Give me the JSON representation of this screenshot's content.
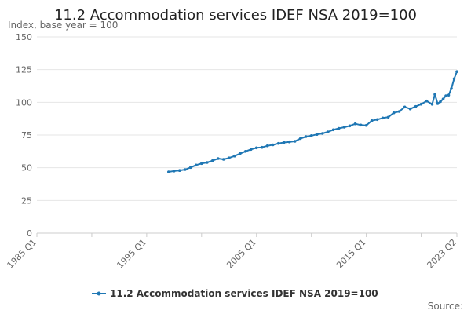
{
  "chart_data": {
    "type": "line",
    "title": "11.2 Accommodation services IDEF NSA 2019=100",
    "ylabel": "Index, base year = 100",
    "xlabel": "",
    "ylim": [
      0,
      150
    ],
    "yticks": [
      "0",
      "25",
      "50",
      "75",
      "100",
      "125",
      "150"
    ],
    "xlim": [
      "1985 Q1",
      "2023 Q2"
    ],
    "xticks": [
      "1985 Q1",
      "1995 Q1",
      "2005 Q1",
      "2015 Q1",
      "2023 Q2"
    ],
    "grid": true,
    "legend_position": "bottom",
    "source_label": "Source:",
    "series": [
      {
        "name": "11.2 Accommodation services IDEF NSA 2019=100",
        "color": "#1f77b4",
        "points": [
          [
            "1997 Q1",
            46.8
          ],
          [
            "1997 Q3",
            47.5
          ],
          [
            "1998 Q1",
            47.9
          ],
          [
            "1998 Q3",
            48.6
          ],
          [
            "1999 Q1",
            50.2
          ],
          [
            "1999 Q3",
            52.0
          ],
          [
            "2000 Q1",
            53.2
          ],
          [
            "2000 Q3",
            54.0
          ],
          [
            "2001 Q1",
            55.4
          ],
          [
            "2001 Q3",
            57.0
          ],
          [
            "2002 Q1",
            56.4
          ],
          [
            "2002 Q3",
            57.5
          ],
          [
            "2003 Q1",
            59.0
          ],
          [
            "2003 Q3",
            60.8
          ],
          [
            "2004 Q1",
            62.5
          ],
          [
            "2004 Q3",
            64.0
          ],
          [
            "2005 Q1",
            65.2
          ],
          [
            "2005 Q3",
            65.6
          ],
          [
            "2006 Q1",
            66.8
          ],
          [
            "2006 Q3",
            67.5
          ],
          [
            "2007 Q1",
            68.6
          ],
          [
            "2007 Q3",
            69.3
          ],
          [
            "2008 Q1",
            69.8
          ],
          [
            "2008 Q3",
            70.2
          ],
          [
            "2009 Q1",
            72.3
          ],
          [
            "2009 Q3",
            73.8
          ],
          [
            "2010 Q1",
            74.5
          ],
          [
            "2010 Q3",
            75.5
          ],
          [
            "2011 Q1",
            76.2
          ],
          [
            "2011 Q3",
            77.4
          ],
          [
            "2012 Q1",
            79.0
          ],
          [
            "2012 Q3",
            80.1
          ],
          [
            "2013 Q1",
            81.0
          ],
          [
            "2013 Q3",
            82.0
          ],
          [
            "2014 Q1",
            83.6
          ],
          [
            "2014 Q3",
            82.6
          ],
          [
            "2015 Q1",
            82.4
          ],
          [
            "2015 Q3",
            86.0
          ],
          [
            "2016 Q1",
            86.8
          ],
          [
            "2016 Q3",
            88.0
          ],
          [
            "2017 Q1",
            88.6
          ],
          [
            "2017 Q3",
            92.0
          ],
          [
            "2018 Q1",
            93.0
          ],
          [
            "2018 Q3",
            96.4
          ],
          [
            "2019 Q1",
            95.0
          ],
          [
            "2019 Q3",
            96.8
          ],
          [
            "2020 Q1",
            98.6
          ],
          [
            "2020 Q3",
            101.0
          ],
          [
            "2021 Q1",
            98.5
          ],
          [
            "2021 Q2",
            106.0
          ],
          [
            "2021 Q3",
            99.0
          ],
          [
            "2021 Q4",
            100.5
          ],
          [
            "2022 Q1",
            102.5
          ],
          [
            "2022 Q2",
            105.0
          ],
          [
            "2022 Q3",
            105.5
          ],
          [
            "2022 Q4",
            110.5
          ],
          [
            "2023 Q1",
            118.0
          ],
          [
            "2023 Q2",
            123.5
          ]
        ]
      }
    ]
  }
}
